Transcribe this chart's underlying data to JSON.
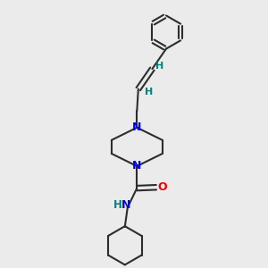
{
  "background_color": "#ebebeb",
  "bond_color": "#2d2d2d",
  "N_color": "#0000ee",
  "O_color": "#ee0000",
  "H_color": "#008080",
  "line_width": 1.5,
  "figsize": [
    3.0,
    3.0
  ],
  "dpi": 100,
  "xlim": [
    0,
    10
  ],
  "ylim": [
    0,
    10
  ]
}
